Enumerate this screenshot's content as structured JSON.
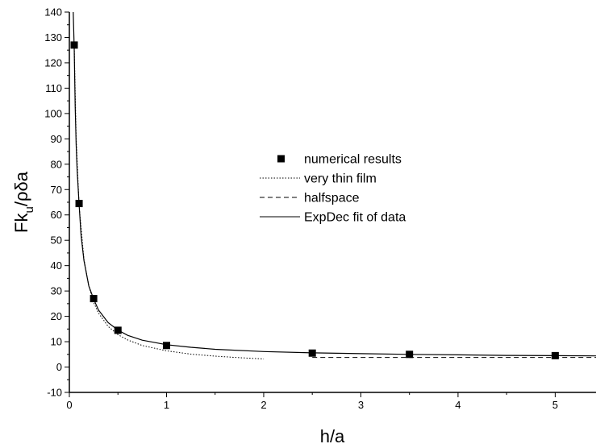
{
  "chart_data": {
    "type": "scatter",
    "xlabel": "h/a",
    "ylabel": {
      "base": "Fk",
      "sub": "u",
      "rest": "/ρδa"
    },
    "xlim": [
      0,
      5.42
    ],
    "ylim": [
      -10,
      140
    ],
    "x_ticks": [
      0,
      1,
      2,
      3,
      4,
      5
    ],
    "y_ticks": [
      -10,
      0,
      10,
      20,
      30,
      40,
      50,
      60,
      70,
      80,
      90,
      100,
      110,
      120,
      130,
      140
    ],
    "x_minor_step": 0.5,
    "y_minor_step": 5,
    "grid": false,
    "legend_position": "right-middle",
    "series": [
      {
        "name": "numerical results",
        "style": "square-marker",
        "x": [
          0.05,
          0.1,
          0.25,
          0.5,
          1.0,
          2.5,
          3.5,
          5.0
        ],
        "y": [
          127,
          64.5,
          27,
          14.5,
          8.5,
          5.5,
          5.0,
          4.5
        ]
      },
      {
        "name": "very thin film",
        "style": "dotted",
        "x": [
          0.05,
          0.07,
          0.1,
          0.15,
          0.2,
          0.25,
          0.3,
          0.4,
          0.5,
          0.6,
          0.75,
          1.0,
          1.25,
          1.5,
          1.75,
          2.0
        ],
        "y": [
          127,
          91,
          64,
          42.5,
          32,
          25.5,
          21.3,
          16,
          12.8,
          10.7,
          8.5,
          6.4,
          5.1,
          4.3,
          3.7,
          3.2
        ]
      },
      {
        "name": "halfspace",
        "style": "dashed",
        "x": [
          2.5,
          3.0,
          3.5,
          4.0,
          4.5,
          5.0,
          5.42
        ],
        "y": [
          3.8,
          3.8,
          3.8,
          3.8,
          3.8,
          3.8,
          3.8
        ]
      },
      {
        "name": "ExpDec fit of data",
        "style": "solid",
        "x": [
          0.04,
          0.05,
          0.06,
          0.07,
          0.08,
          0.1,
          0.12,
          0.15,
          0.2,
          0.25,
          0.3,
          0.4,
          0.5,
          0.6,
          0.75,
          1.0,
          1.25,
          1.5,
          2.0,
          2.5,
          3.0,
          3.5,
          4.0,
          4.5,
          5.0,
          5.42
        ],
        "y": [
          140,
          126,
          103,
          88,
          78,
          64.5,
          52,
          42,
          32,
          26.8,
          22.5,
          17.5,
          14.6,
          12.5,
          10.6,
          8.8,
          7.8,
          7.0,
          6.1,
          5.6,
          5.3,
          5.0,
          4.8,
          4.6,
          4.5,
          4.4
        ]
      }
    ]
  }
}
